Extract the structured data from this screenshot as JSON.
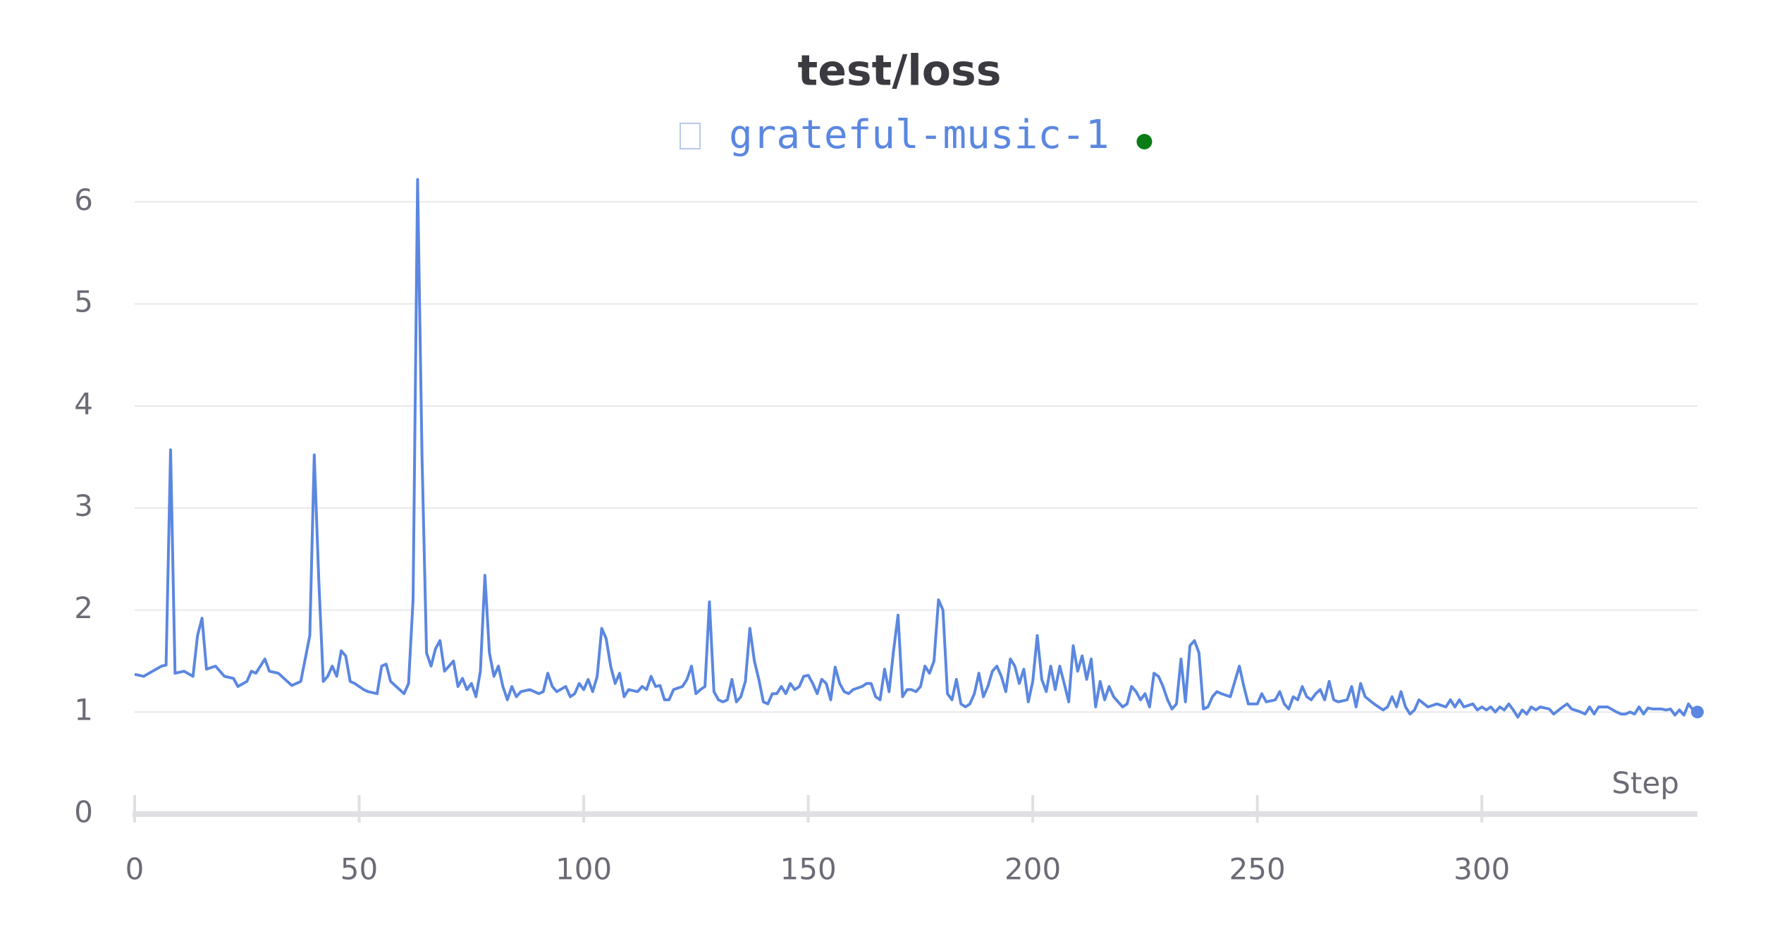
{
  "chart_data": {
    "type": "line",
    "title": "test/loss",
    "x_label": "Step",
    "x": [
      0,
      2,
      4,
      6,
      7,
      8,
      9,
      11,
      13,
      14,
      15,
      16,
      18,
      20,
      22,
      23,
      25,
      26,
      27,
      29,
      30,
      32,
      34,
      35,
      37,
      39,
      40,
      41,
      42,
      43,
      44,
      45,
      46,
      47,
      48,
      49,
      51,
      52,
      54,
      55,
      56,
      57,
      59,
      60,
      61,
      62,
      63,
      64,
      65,
      66,
      67,
      68,
      69,
      71,
      72,
      73,
      74,
      75,
      76,
      77,
      78,
      79,
      80,
      81,
      82,
      83,
      84,
      85,
      86,
      88,
      90,
      91,
      92,
      93,
      94,
      96,
      97,
      98,
      99,
      100,
      101,
      102,
      103,
      104,
      105,
      106,
      107,
      108,
      109,
      110,
      112,
      113,
      114,
      115,
      116,
      117,
      118,
      119,
      120,
      122,
      123,
      124,
      125,
      126,
      127,
      128,
      129,
      130,
      131,
      132,
      133,
      134,
      135,
      136,
      137,
      138,
      139,
      140,
      141,
      142,
      143,
      144,
      145,
      146,
      147,
      148,
      149,
      150,
      151,
      152,
      153,
      154,
      155,
      156,
      157,
      158,
      159,
      160,
      162,
      163,
      164,
      165,
      166,
      167,
      168,
      169,
      170,
      171,
      172,
      173,
      174,
      175,
      176,
      177,
      178,
      179,
      180,
      181,
      182,
      183,
      184,
      185,
      186,
      187,
      188,
      189,
      190,
      191,
      192,
      193,
      194,
      195,
      196,
      197,
      198,
      199,
      200,
      201,
      202,
      203,
      204,
      205,
      206,
      207,
      208,
      209,
      210,
      211,
      212,
      213,
      214,
      215,
      216,
      217,
      218,
      219,
      220,
      221,
      222,
      223,
      224,
      225,
      226,
      227,
      228,
      229,
      230,
      231,
      232,
      233,
      234,
      235,
      236,
      237,
      238,
      239,
      240,
      241,
      242,
      244,
      246,
      247,
      248,
      250,
      251,
      252,
      254,
      255,
      256,
      257,
      258,
      259,
      260,
      261,
      262,
      263,
      264,
      265,
      266,
      267,
      268,
      270,
      271,
      272,
      273,
      274,
      276,
      278,
      279,
      280,
      281,
      282,
      283,
      284,
      285,
      286,
      288,
      290,
      292,
      293,
      294,
      295,
      296,
      298,
      299,
      300,
      301,
      302,
      303,
      304,
      305,
      306,
      307,
      308,
      309,
      310,
      311,
      312,
      313,
      315,
      316,
      318,
      319,
      320,
      322,
      323,
      324,
      325,
      326,
      328,
      330,
      331,
      332,
      333,
      334,
      335,
      336,
      337,
      338,
      340,
      341,
      342,
      343,
      344,
      345,
      346,
      347,
      348
    ],
    "series": [
      {
        "name": "grateful-music-1",
        "color": "#5b87e0",
        "values": [
          1.37,
          1.35,
          1.4,
          1.45,
          1.46,
          3.57,
          1.38,
          1.4,
          1.35,
          1.75,
          1.92,
          1.42,
          1.45,
          1.35,
          1.33,
          1.25,
          1.3,
          1.4,
          1.38,
          1.52,
          1.4,
          1.38,
          1.3,
          1.26,
          1.3,
          1.75,
          3.52,
          2.3,
          1.3,
          1.35,
          1.45,
          1.35,
          1.6,
          1.55,
          1.3,
          1.28,
          1.22,
          1.2,
          1.18,
          1.45,
          1.47,
          1.3,
          1.22,
          1.18,
          1.28,
          2.1,
          6.22,
          3.5,
          1.58,
          1.45,
          1.62,
          1.7,
          1.4,
          1.5,
          1.25,
          1.33,
          1.22,
          1.28,
          1.15,
          1.4,
          2.34,
          1.58,
          1.35,
          1.45,
          1.25,
          1.12,
          1.25,
          1.15,
          1.2,
          1.22,
          1.18,
          1.2,
          1.38,
          1.25,
          1.2,
          1.25,
          1.15,
          1.18,
          1.28,
          1.22,
          1.32,
          1.2,
          1.35,
          1.82,
          1.72,
          1.45,
          1.28,
          1.38,
          1.15,
          1.22,
          1.2,
          1.25,
          1.22,
          1.35,
          1.25,
          1.26,
          1.12,
          1.12,
          1.22,
          1.25,
          1.32,
          1.45,
          1.18,
          1.22,
          1.25,
          2.08,
          1.2,
          1.12,
          1.1,
          1.12,
          1.32,
          1.1,
          1.15,
          1.3,
          1.82,
          1.5,
          1.32,
          1.1,
          1.08,
          1.18,
          1.18,
          1.25,
          1.18,
          1.28,
          1.22,
          1.25,
          1.35,
          1.36,
          1.28,
          1.18,
          1.32,
          1.28,
          1.12,
          1.44,
          1.28,
          1.2,
          1.18,
          1.22,
          1.25,
          1.28,
          1.28,
          1.15,
          1.12,
          1.42,
          1.2,
          1.6,
          1.95,
          1.15,
          1.22,
          1.22,
          1.2,
          1.25,
          1.45,
          1.38,
          1.5,
          2.1,
          2.0,
          1.18,
          1.12,
          1.32,
          1.08,
          1.05,
          1.08,
          1.18,
          1.38,
          1.15,
          1.25,
          1.4,
          1.45,
          1.35,
          1.2,
          1.52,
          1.45,
          1.28,
          1.42,
          1.1,
          1.3,
          1.75,
          1.32,
          1.2,
          1.45,
          1.22,
          1.45,
          1.28,
          1.1,
          1.65,
          1.4,
          1.55,
          1.32,
          1.52,
          1.05,
          1.3,
          1.12,
          1.25,
          1.15,
          1.1,
          1.05,
          1.08,
          1.25,
          1.2,
          1.12,
          1.18,
          1.05,
          1.38,
          1.35,
          1.25,
          1.12,
          1.03,
          1.08,
          1.52,
          1.1,
          1.65,
          1.7,
          1.58,
          1.03,
          1.05,
          1.15,
          1.2,
          1.18,
          1.15,
          1.45,
          1.25,
          1.08,
          1.08,
          1.18,
          1.1,
          1.12,
          1.2,
          1.08,
          1.03,
          1.15,
          1.12,
          1.25,
          1.15,
          1.12,
          1.18,
          1.22,
          1.12,
          1.3,
          1.12,
          1.1,
          1.12,
          1.25,
          1.05,
          1.28,
          1.15,
          1.08,
          1.02,
          1.05,
          1.15,
          1.05,
          1.2,
          1.05,
          0.98,
          1.02,
          1.12,
          1.05,
          1.08,
          1.05,
          1.12,
          1.05,
          1.12,
          1.05,
          1.08,
          1.02,
          1.05,
          1.02,
          1.05,
          1.0,
          1.05,
          1.02,
          1.08,
          1.02,
          0.95,
          1.02,
          0.98,
          1.05,
          1.02,
          1.05,
          1.03,
          0.98,
          1.05,
          1.08,
          1.03,
          1.0,
          0.98,
          1.05,
          0.98,
          1.05,
          1.05,
          1.0,
          0.98,
          0.98,
          1.0,
          0.98,
          1.05,
          0.98,
          1.04,
          1.03,
          1.03,
          1.02,
          1.03,
          0.97,
          1.02,
          0.97,
          1.08,
          1.02,
          1.0
        ]
      }
    ],
    "xlim": [
      0,
      348
    ],
    "xticks": [
      0,
      50,
      100,
      150,
      200,
      250,
      300
    ],
    "ylim": [
      0,
      6.3
    ],
    "yticks": [
      0,
      1,
      2,
      3,
      4,
      5,
      6
    ],
    "grid": true
  }
}
